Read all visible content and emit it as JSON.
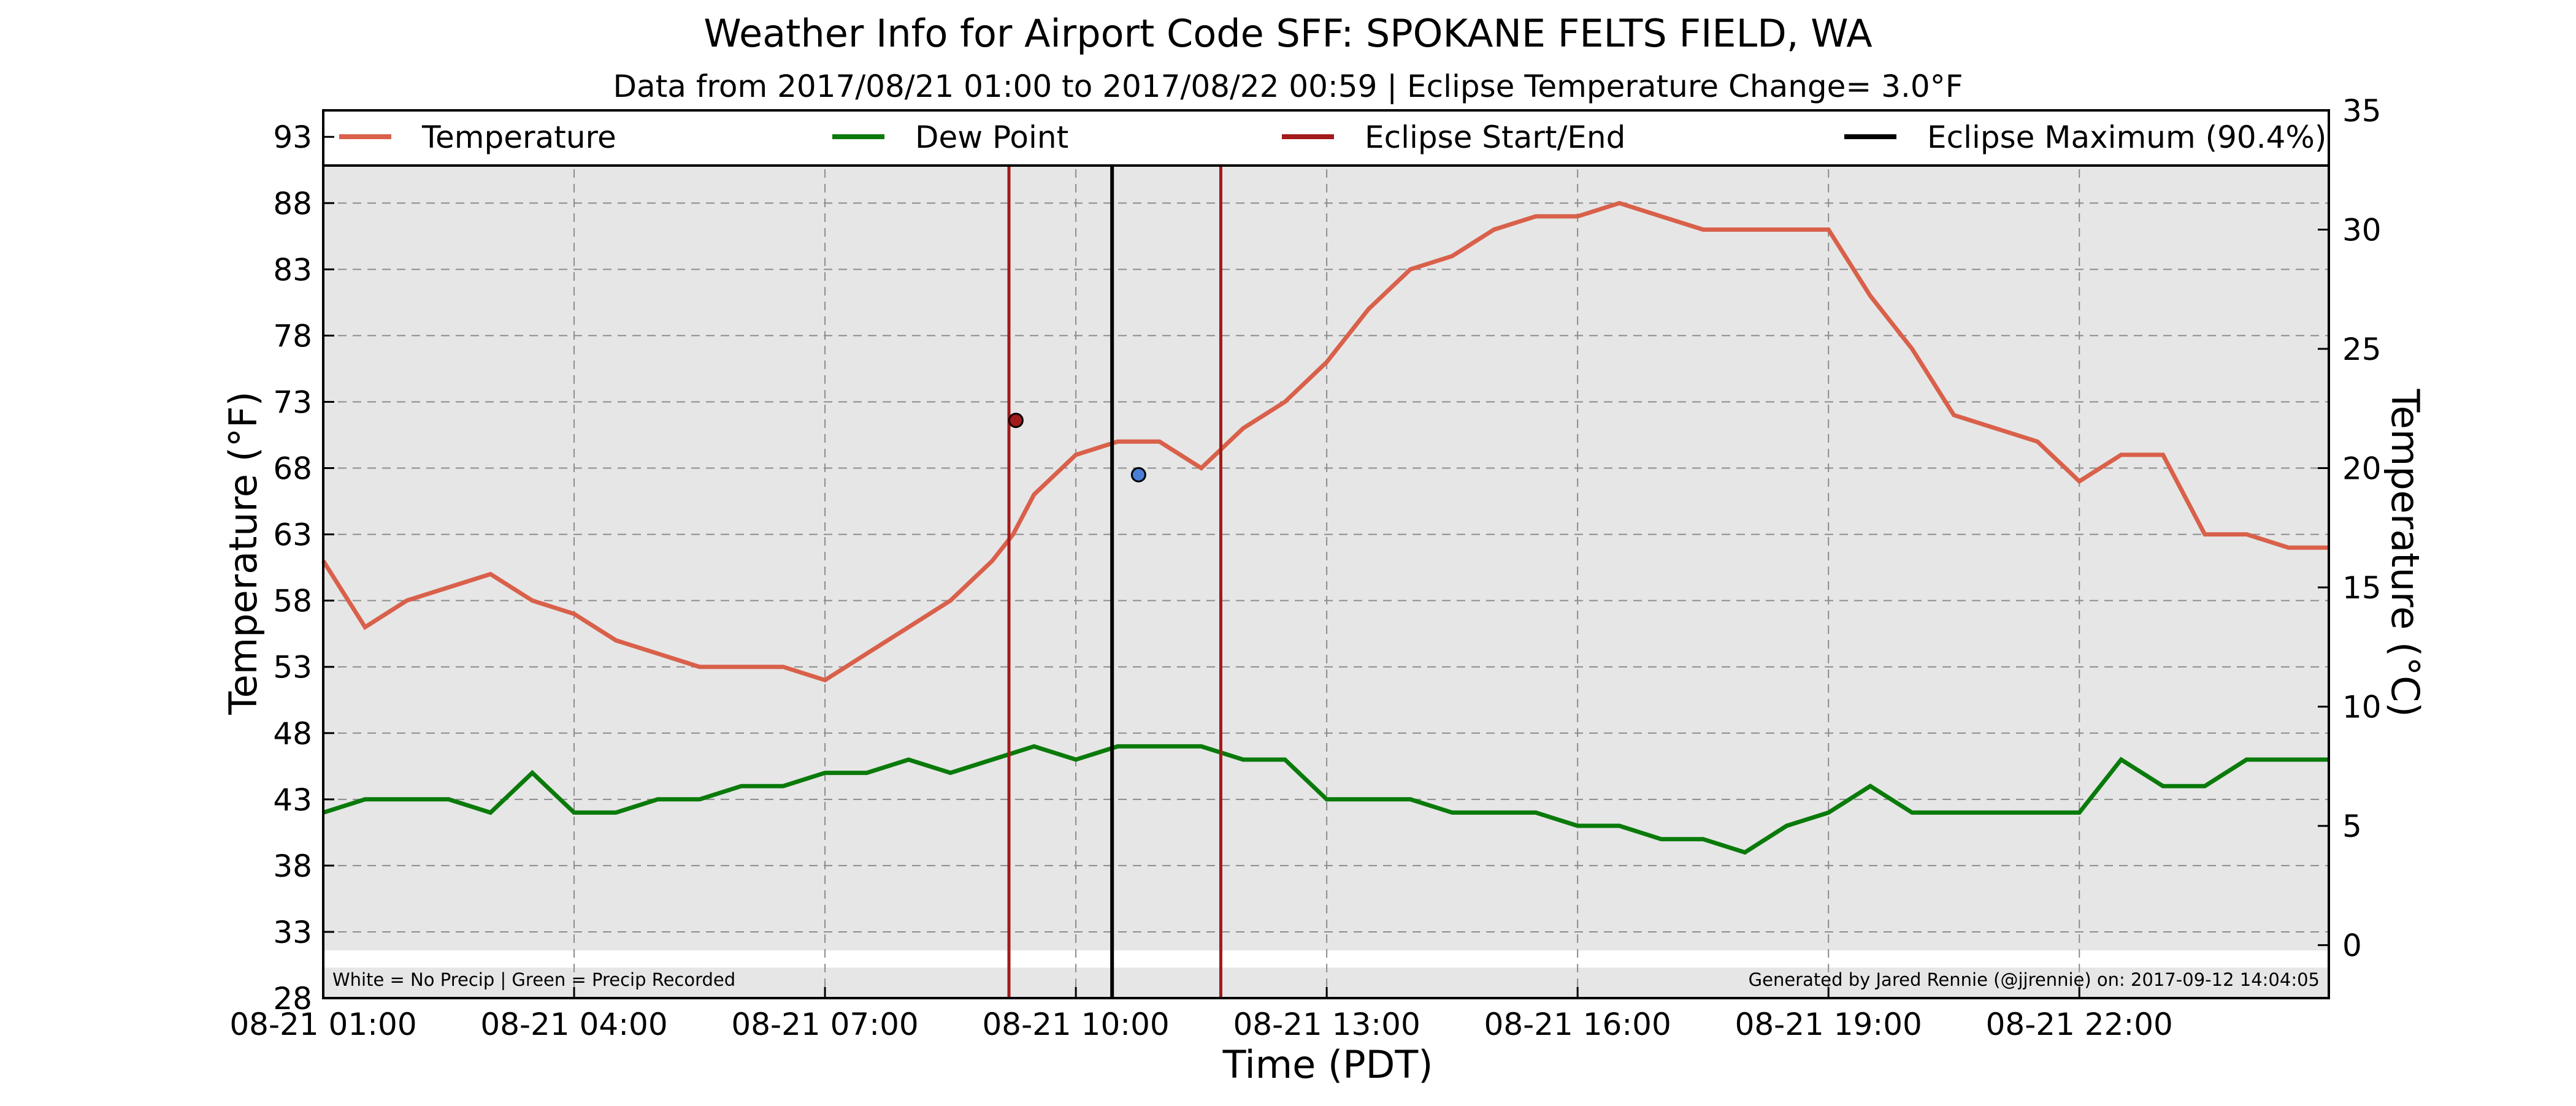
{
  "chart_data": {
    "type": "line",
    "title": "Weather Info for Airport Code SFF: SPOKANE FELTS FIELD, WA",
    "subtitle": "Data from 2017/08/21 01:00 to 2017/08/22 00:59 | Eclipse Temperature Change= 3.0°F",
    "xlabel": "Time (PDT)",
    "ylabel": "Temperature (°F)",
    "ylabel_right": "Temperature (°C)",
    "xlim": [
      "2017-08-21 01:00",
      "2017-08-22 00:59"
    ],
    "ylim": [
      28,
      95
    ],
    "ylim_right_c": [
      -2.22,
      35
    ],
    "x_ticks": [
      "08-21 01:00",
      "08-21 04:00",
      "08-21 07:00",
      "08-21 10:00",
      "08-21 13:00",
      "08-21 16:00",
      "08-21 19:00",
      "08-21 22:00"
    ],
    "y_ticks": [
      28,
      33,
      38,
      43,
      48,
      53,
      58,
      63,
      68,
      73,
      78,
      83,
      88,
      93
    ],
    "y_ticks_right": [
      0,
      5,
      10,
      15,
      20,
      25,
      30,
      35
    ],
    "grid": true,
    "legend_position": "top",
    "colors": {
      "temperature": "#d9604a",
      "dew_point": "#0a7a0a",
      "eclipse_start_end": "#a31a1a",
      "eclipse_max": "#000000",
      "plot_bg": "#e6e6e6",
      "precip_strip": "#ffffff",
      "start_marker": "#a31a1a",
      "end_marker": "#4a7fd6"
    },
    "legend": [
      {
        "label": "Temperature",
        "color": "#d9604a"
      },
      {
        "label": "Dew Point",
        "color": "#0a7a0a"
      },
      {
        "label": "Eclipse Start/End",
        "color": "#a31a1a"
      },
      {
        "label": "Eclipse Maximum (90.4%)",
        "color": "#000000"
      }
    ],
    "eclipse": {
      "start": "2017-08-21 09:12",
      "maximum": "2017-08-21 10:26",
      "end": "2017-08-21 11:44",
      "start_temp_f": 71.6,
      "end_temp_f": 67.5
    },
    "series": [
      {
        "name": "Temperature",
        "key": "temperature",
        "x": [
          "2017-08-21 01:00",
          "2017-08-21 01:30",
          "2017-08-21 02:00",
          "2017-08-21 02:30",
          "2017-08-21 03:00",
          "2017-08-21 03:30",
          "2017-08-21 04:00",
          "2017-08-21 04:30",
          "2017-08-21 05:00",
          "2017-08-21 05:30",
          "2017-08-21 06:00",
          "2017-08-21 06:30",
          "2017-08-21 07:00",
          "2017-08-21 07:30",
          "2017-08-21 08:00",
          "2017-08-21 08:30",
          "2017-08-21 09:00",
          "2017-08-21 09:15",
          "2017-08-21 09:30",
          "2017-08-21 10:00",
          "2017-08-21 10:30",
          "2017-08-21 11:00",
          "2017-08-21 11:30",
          "2017-08-21 12:00",
          "2017-08-21 12:30",
          "2017-08-21 13:00",
          "2017-08-21 13:30",
          "2017-08-21 14:00",
          "2017-08-21 14:30",
          "2017-08-21 15:00",
          "2017-08-21 15:30",
          "2017-08-21 16:00",
          "2017-08-21 16:30",
          "2017-08-21 17:00",
          "2017-08-21 17:30",
          "2017-08-21 18:00",
          "2017-08-21 18:30",
          "2017-08-21 19:00",
          "2017-08-21 19:30",
          "2017-08-21 20:00",
          "2017-08-21 20:30",
          "2017-08-21 21:00",
          "2017-08-21 21:30",
          "2017-08-21 22:00",
          "2017-08-21 22:30",
          "2017-08-21 23:00",
          "2017-08-21 23:30",
          "2017-08-22 00:00",
          "2017-08-22 00:30",
          "2017-08-22 00:59"
        ],
        "values": [
          61,
          56,
          58,
          59,
          60,
          58,
          57,
          55,
          54,
          53,
          53,
          53,
          52,
          54,
          56,
          58,
          61,
          63,
          66,
          69,
          70,
          70,
          68,
          71,
          73,
          76,
          80,
          83,
          84,
          86,
          87,
          87,
          88,
          87,
          86,
          86,
          86,
          86,
          81,
          77,
          72,
          71,
          70,
          67,
          69,
          69,
          63,
          63,
          62,
          62
        ]
      },
      {
        "name": "Dew Point",
        "key": "dew_point",
        "x": [
          "2017-08-21 01:00",
          "2017-08-21 01:30",
          "2017-08-21 02:00",
          "2017-08-21 02:30",
          "2017-08-21 03:00",
          "2017-08-21 03:30",
          "2017-08-21 04:00",
          "2017-08-21 04:30",
          "2017-08-21 05:00",
          "2017-08-21 05:30",
          "2017-08-21 06:00",
          "2017-08-21 06:30",
          "2017-08-21 07:00",
          "2017-08-21 07:30",
          "2017-08-21 08:00",
          "2017-08-21 08:30",
          "2017-08-21 09:00",
          "2017-08-21 09:30",
          "2017-08-21 10:00",
          "2017-08-21 10:30",
          "2017-08-21 11:00",
          "2017-08-21 11:30",
          "2017-08-21 12:00",
          "2017-08-21 12:30",
          "2017-08-21 13:00",
          "2017-08-21 13:30",
          "2017-08-21 14:00",
          "2017-08-21 14:30",
          "2017-08-21 15:00",
          "2017-08-21 15:30",
          "2017-08-21 16:00",
          "2017-08-21 16:30",
          "2017-08-21 17:00",
          "2017-08-21 17:30",
          "2017-08-21 18:00",
          "2017-08-21 18:30",
          "2017-08-21 19:00",
          "2017-08-21 19:30",
          "2017-08-21 20:00",
          "2017-08-21 20:30",
          "2017-08-21 21:00",
          "2017-08-21 21:30",
          "2017-08-21 22:00",
          "2017-08-21 22:30",
          "2017-08-21 23:00",
          "2017-08-21 23:30",
          "2017-08-22 00:00",
          "2017-08-22 00:30",
          "2017-08-22 00:59"
        ],
        "values": [
          42,
          43,
          43,
          43,
          42,
          45,
          42,
          42,
          43,
          43,
          44,
          44,
          45,
          45,
          46,
          45,
          46,
          47,
          46,
          47,
          47,
          47,
          46,
          46,
          43,
          43,
          43,
          42,
          42,
          42,
          41,
          41,
          40,
          40,
          39,
          41,
          42,
          44,
          42,
          42,
          42,
          42,
          42,
          46,
          44,
          44,
          46,
          46,
          46
        ]
      }
    ],
    "footer_left": "White = No Precip | Green = Precip Recorded",
    "footer_right": "Generated by Jared Rennie (@jjrennie) on: 2017-09-12 14:04:05"
  }
}
